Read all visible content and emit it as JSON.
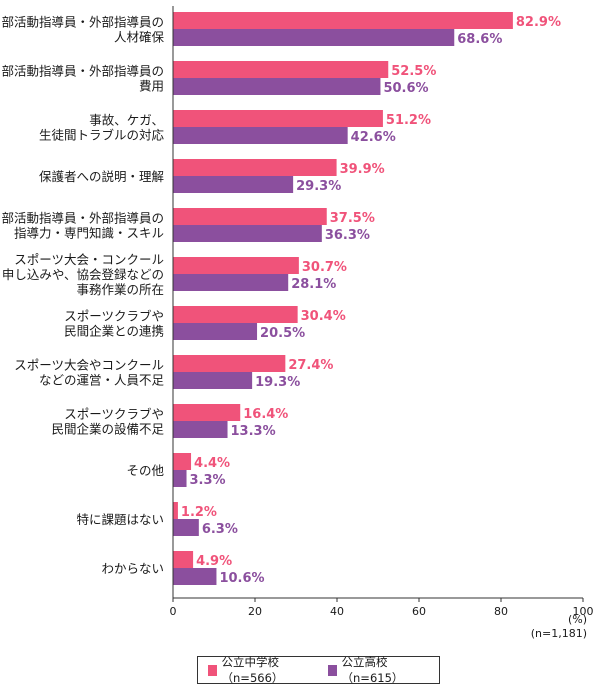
{
  "chart_data": {
    "type": "bar",
    "orientation": "horizontal",
    "categories": [
      [
        "部活動指導員・外部指導員の",
        "人材確保"
      ],
      [
        "部活動指導員・外部指導員の",
        "費用"
      ],
      [
        "事故、ケガ、",
        "生徒間トラブルの対応"
      ],
      [
        "保護者への説明・理解"
      ],
      [
        "部活動指導員・外部指導員の",
        "指導力・専門知識・スキル"
      ],
      [
        "スポーツ大会・コンクール",
        "申し込みや、協会登録などの",
        "事務作業の所在"
      ],
      [
        "スポーツクラブや",
        "民間企業との連携"
      ],
      [
        "スポーツ大会やコンクール",
        "などの運営・人員不足"
      ],
      [
        "スポーツクラブや",
        "民間企業の設備不足"
      ],
      [
        "その他"
      ],
      [
        "特に課題はない"
      ],
      [
        "わからない"
      ]
    ],
    "series": [
      {
        "name": "公立中学校（n=566）",
        "color": "#f0537a",
        "values": [
          82.9,
          52.5,
          51.2,
          39.9,
          37.5,
          30.7,
          30.4,
          27.4,
          16.4,
          4.4,
          1.2,
          4.9
        ]
      },
      {
        "name": "公立高校（n=615）",
        "color": "#8b4f9e",
        "values": [
          68.6,
          50.6,
          42.6,
          29.3,
          36.3,
          28.1,
          20.5,
          19.3,
          13.3,
          3.3,
          6.3,
          10.6
        ]
      }
    ],
    "value_suffix": "%",
    "xlim": [
      0,
      100
    ],
    "xticks": [
      0,
      20,
      40,
      60,
      80,
      100
    ],
    "unit_label": "(%)",
    "n_label": "(n=1,181)",
    "legend_position": "bottom"
  }
}
